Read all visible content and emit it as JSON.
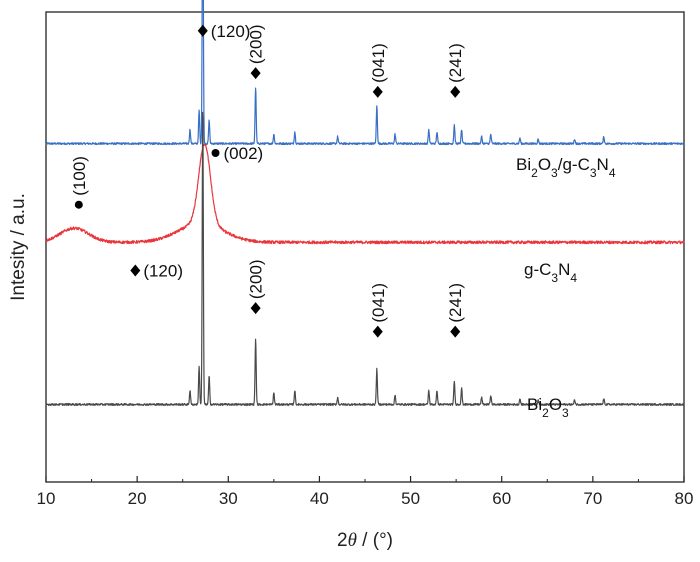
{
  "chart_data": {
    "type": "line",
    "xlabel": {
      "pre": "2",
      "theta": "θ",
      "post": " / (°)"
    },
    "ylabel": "Intesity / a.u.",
    "xlim": [
      10,
      80
    ],
    "xticks": [
      10,
      20,
      30,
      40,
      50,
      60,
      70,
      80
    ],
    "xtick_labels": [
      "10",
      "20",
      "30",
      "40",
      "50",
      "60",
      "70",
      "80"
    ],
    "grid": false,
    "series": [
      {
        "name": "Bi2O3/g-C3N4",
        "label_parts": [
          [
            "Bi",
            ""
          ],
          [
            "2",
            "sub"
          ],
          [
            "O",
            ""
          ],
          [
            "3",
            "sub"
          ],
          [
            "/g-C",
            ""
          ],
          [
            "3",
            "sub"
          ],
          [
            "N",
            ""
          ],
          [
            "4",
            "sub"
          ]
        ],
        "color": "#3a6fc6",
        "baseline": 0.72,
        "peaks": [
          [
            25.8,
            0.03
          ],
          [
            26.8,
            0.07
          ],
          [
            27.2,
            0.58
          ],
          [
            27.9,
            0.05
          ],
          [
            33.0,
            0.12
          ],
          [
            35.0,
            0.02
          ],
          [
            37.3,
            0.025
          ],
          [
            42.0,
            0.015
          ],
          [
            46.3,
            0.08
          ],
          [
            48.3,
            0.02
          ],
          [
            52.0,
            0.03
          ],
          [
            52.9,
            0.025
          ],
          [
            54.8,
            0.04
          ],
          [
            55.6,
            0.03
          ],
          [
            57.8,
            0.015
          ],
          [
            58.8,
            0.02
          ],
          [
            62.0,
            0.012
          ],
          [
            64.0,
            0.01
          ],
          [
            68.0,
            0.01
          ],
          [
            71.2,
            0.015
          ]
        ]
      },
      {
        "name": "g-C3N4",
        "label_parts": [
          [
            "g-C",
            ""
          ],
          [
            "3",
            "sub"
          ],
          [
            "N",
            ""
          ],
          [
            "4",
            "sub"
          ]
        ],
        "color": "#e8363c",
        "baseline": 0.51,
        "humps": [
          [
            13.1,
            0.03,
            2.2
          ],
          [
            27.4,
            0.17,
            0.9
          ],
          [
            27.0,
            0.04,
            3.5
          ]
        ]
      },
      {
        "name": "Bi2O3",
        "label_parts": [
          [
            "Bi",
            ""
          ],
          [
            "2",
            "sub"
          ],
          [
            "O",
            ""
          ],
          [
            "3",
            "sub"
          ]
        ],
        "color": "#4a4a4a",
        "baseline": 0.165,
        "peaks": [
          [
            25.8,
            0.03
          ],
          [
            26.8,
            0.08
          ],
          [
            27.2,
            0.64
          ],
          [
            27.9,
            0.06
          ],
          [
            33.0,
            0.14
          ],
          [
            35.0,
            0.025
          ],
          [
            37.3,
            0.03
          ],
          [
            42.0,
            0.015
          ],
          [
            46.3,
            0.075
          ],
          [
            48.3,
            0.02
          ],
          [
            52.0,
            0.03
          ],
          [
            52.9,
            0.03
          ],
          [
            54.8,
            0.05
          ],
          [
            55.6,
            0.035
          ],
          [
            57.8,
            0.015
          ],
          [
            58.8,
            0.02
          ],
          [
            62.0,
            0.012
          ],
          [
            64.0,
            0.01
          ],
          [
            68.0,
            0.01
          ],
          [
            71.2,
            0.012
          ]
        ]
      }
    ],
    "annotations": [
      {
        "text": "(120)",
        "marker": "diamond",
        "x": 27.2,
        "level": 0.96,
        "rotate": 0
      },
      {
        "text": "(200)",
        "marker": "diamond",
        "x": 33.0,
        "level": 0.87,
        "rotate": -90
      },
      {
        "text": "(041)",
        "marker": "diamond",
        "x": 46.4,
        "level": 0.83,
        "rotate": -90
      },
      {
        "text": "(241)",
        "marker": "diamond",
        "x": 54.9,
        "level": 0.83,
        "rotate": -90
      },
      {
        "text": "(002)",
        "marker": "dot",
        "x": 28.6,
        "level": 0.7,
        "rotate": 0
      },
      {
        "text": "(100)",
        "marker": "dot",
        "x": 13.6,
        "level": 0.59,
        "rotate": -90
      },
      {
        "text": "(120)",
        "marker": "diamond",
        "x": 19.8,
        "level": 0.45,
        "rotate": 0
      },
      {
        "text": "(200)",
        "marker": "diamond",
        "x": 33.0,
        "level": 0.37,
        "rotate": -90
      },
      {
        "text": "(041)",
        "marker": "diamond",
        "x": 46.4,
        "level": 0.32,
        "rotate": -90
      },
      {
        "text": "(241)",
        "marker": "diamond",
        "x": 54.9,
        "level": 0.32,
        "rotate": -90
      }
    ]
  }
}
